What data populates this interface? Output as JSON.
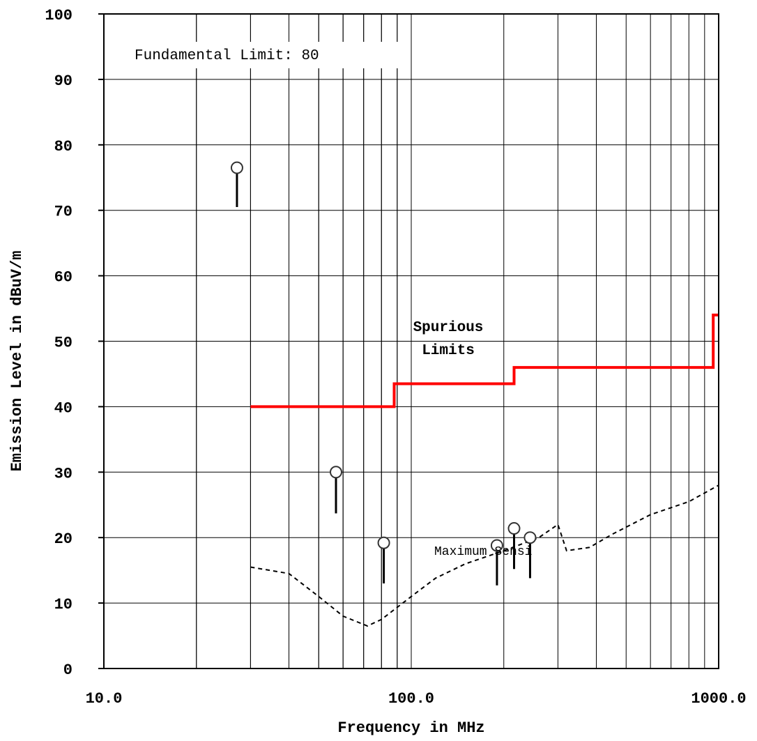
{
  "chart_data": {
    "type": "line",
    "xlabel": "Frequency in MHz",
    "ylabel": "Emission Level in dBuV/m",
    "x_scale": "log",
    "xlim": [
      10,
      1000
    ],
    "ylim": [
      0,
      100
    ],
    "x_ticks": [
      10,
      100,
      1000
    ],
    "x_tick_labels": [
      "10.0",
      "100.0",
      "1000.0"
    ],
    "y_ticks": [
      0,
      10,
      20,
      30,
      40,
      50,
      60,
      70,
      80,
      90,
      100
    ],
    "y_tick_labels": [
      "0",
      "10",
      "20",
      "30",
      "40",
      "50",
      "60",
      "70",
      "80",
      "90",
      "100"
    ],
    "grid": true,
    "annotations": {
      "fundamental": "Fundamental Limit: 80",
      "spurious_line1": "Spurious",
      "spurious_line2": "Limits",
      "sensitivity": "Maximum Sensi"
    },
    "colors": {
      "limit": "#ff0000",
      "marker": "#333333",
      "grid": "#000000"
    },
    "limit_line": {
      "x": [
        30,
        88,
        88,
        216,
        216,
        960,
        960,
        1000
      ],
      "y": [
        40,
        40,
        43.5,
        43.5,
        46,
        46,
        54,
        54
      ]
    },
    "sensitivity_line": {
      "x": [
        30,
        40,
        50,
        60,
        72,
        80,
        100,
        120,
        150,
        200,
        260,
        300,
        320,
        380,
        450,
        600,
        800,
        1000
      ],
      "y": [
        15.5,
        14.5,
        11,
        8,
        6.5,
        7.5,
        11,
        13.8,
        16,
        18,
        20,
        22,
        18,
        18.5,
        20.5,
        23.5,
        25.5,
        28
      ]
    },
    "measurements": [
      {
        "x": 27.1,
        "y_top": 76.5,
        "y_bottom": 70.5
      },
      {
        "x": 56.9,
        "y_top": 30,
        "y_bottom": 23.7
      },
      {
        "x": 81.4,
        "y_top": 19.2,
        "y_bottom": 13
      },
      {
        "x": 190,
        "y_top": 18.8,
        "y_bottom": 12.7
      },
      {
        "x": 216,
        "y_top": 21.4,
        "y_bottom": 15.2
      },
      {
        "x": 243.5,
        "y_top": 20,
        "y_bottom": 13.8
      }
    ]
  }
}
